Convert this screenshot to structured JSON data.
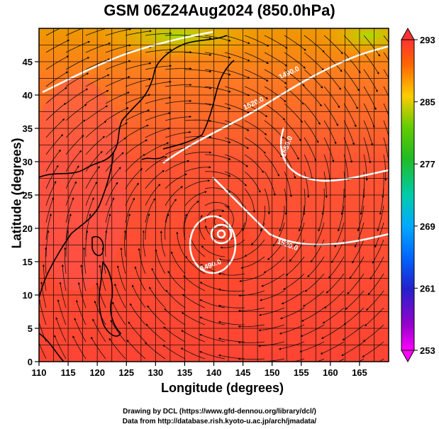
{
  "title": "GSM 06Z24Aug2024 (850.0hPa)",
  "xlabel": "Longitude (degrees)",
  "ylabel": "Latitude  (degrees)",
  "credits": [
    "Drawing by DCL (https://www.gfd-dennou.org/library/dcl/)",
    "Data from http://database.rish.kyoto-u.ac.jp/arch/jmadata/"
  ],
  "chart_data": {
    "type": "heatmap",
    "variable": "temperature with streamlines and geopotential height contours",
    "xlim": [
      110,
      170
    ],
    "ylim": [
      0,
      50
    ],
    "x_ticks": [
      110,
      115,
      120,
      125,
      130,
      135,
      140,
      145,
      150,
      155,
      160,
      165
    ],
    "y_ticks": [
      0,
      5,
      10,
      15,
      20,
      25,
      30,
      35,
      40,
      45
    ],
    "colorbar": {
      "range": [
        253,
        293
      ],
      "tick_labels": [
        293,
        285,
        277,
        269,
        261,
        253
      ]
    },
    "contour_labels": [
      "1490.0",
      "1520.0",
      "1550.0"
    ],
    "typhoon_center": {
      "lon": 141,
      "lat": 21
    }
  }
}
